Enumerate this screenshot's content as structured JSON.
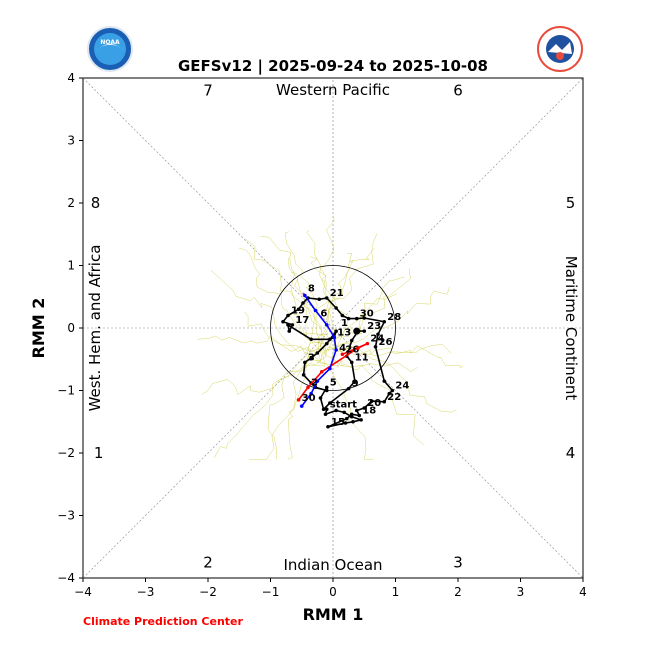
{
  "title": "GEFSv12 | 2025-09-24 to 2025-10-08",
  "footer": "Climate Prediction Center",
  "logos": {
    "left": {
      "name": "noaa-logo",
      "text": "NOAA"
    },
    "right": {
      "name": "nws-logo",
      "text": "NATIONAL WEATHER SERVICE"
    }
  },
  "colors": {
    "observed": "#000000",
    "spread": "#c8c832",
    "segment_red": "#ff0000",
    "segment_blue": "#0000ff",
    "segment_purple": "#cc33cc",
    "footer": "#ff0000"
  },
  "chart_data": {
    "type": "line",
    "title": "GEFSv12 | 2025-09-24 to 2025-10-08",
    "xlabel": "RMM 1",
    "ylabel": "RMM 2",
    "xlim": [
      -4,
      4
    ],
    "ylim": [
      -4,
      4
    ],
    "xticks": [
      "−4",
      "−3",
      "−2",
      "−1",
      "0",
      "1",
      "2",
      "3",
      "4"
    ],
    "yticks": [
      "−4",
      "−3",
      "−2",
      "−1",
      "0",
      "1",
      "2",
      "3",
      "4"
    ],
    "grid": "dashed diagonals and zero lines",
    "amplitude_circle_radius": 1,
    "phase_numbers": [
      {
        "text": "1",
        "x": -3.75,
        "y": -2.0
      },
      {
        "text": "2",
        "x": -2.0,
        "y": -3.75
      },
      {
        "text": "3",
        "x": 2.0,
        "y": -3.75
      },
      {
        "text": "4",
        "x": 3.8,
        "y": -2.0
      },
      {
        "text": "5",
        "x": 3.8,
        "y": 2.0
      },
      {
        "text": "6",
        "x": 2.0,
        "y": 3.8
      },
      {
        "text": "7",
        "x": -2.0,
        "y": 3.8
      },
      {
        "text": "8",
        "x": -3.8,
        "y": 2.0
      }
    ],
    "region_labels": {
      "top": "Western Pacific",
      "bottom": "Indian Ocean",
      "left": "West. Hem. and Africa",
      "right": "Maritime Continent"
    },
    "observed": {
      "name": "observed",
      "points": [
        {
          "label": "start",
          "x": -0.1,
          "y": -1.3
        },
        {
          "label": "",
          "x": -0.12,
          "y": -1.38
        },
        {
          "label": "",
          "x": 0.05,
          "y": -1.32
        },
        {
          "label": "",
          "x": 0.18,
          "y": -1.35
        },
        {
          "label": "",
          "x": 0.3,
          "y": -1.42
        },
        {
          "label": "",
          "x": 0.45,
          "y": -1.47
        },
        {
          "label": "",
          "x": 0.32,
          "y": -1.5
        },
        {
          "label": "",
          "x": 0.2,
          "y": -1.52
        },
        {
          "label": "15",
          "x": -0.08,
          "y": -1.58
        },
        {
          "label": "",
          "x": 0.22,
          "y": -1.45
        },
        {
          "label": "",
          "x": 0.3,
          "y": -1.38
        },
        {
          "label": "18",
          "x": 0.42,
          "y": -1.4
        },
        {
          "label": "",
          "x": 0.38,
          "y": -1.32
        },
        {
          "label": "20",
          "x": 0.5,
          "y": -1.28
        },
        {
          "label": "",
          "x": 0.62,
          "y": -1.17
        },
        {
          "label": "22",
          "x": 0.82,
          "y": -1.18
        },
        {
          "label": "",
          "x": 0.9,
          "y": -1.05
        },
        {
          "label": "24",
          "x": 0.95,
          "y": -1.0
        },
        {
          "label": "",
          "x": 0.82,
          "y": -0.85
        },
        {
          "label": "26",
          "x": 0.68,
          "y": -0.3
        },
        {
          "label": "",
          "x": 0.72,
          "y": -0.1
        },
        {
          "label": "28",
          "x": 0.82,
          "y": 0.1
        },
        {
          "label": "",
          "x": 0.5,
          "y": 0.16
        },
        {
          "label": "30",
          "x": 0.38,
          "y": 0.15
        },
        {
          "label": "",
          "x": 0.25,
          "y": 0.15
        },
        {
          "label": "",
          "x": 0.15,
          "y": 0.2
        },
        {
          "label": "",
          "x": 0.05,
          "y": 0.32
        },
        {
          "label": "21",
          "x": -0.1,
          "y": 0.48
        },
        {
          "label": "",
          "x": -0.22,
          "y": 0.46
        },
        {
          "label": "",
          "x": -0.4,
          "y": 0.48
        },
        {
          "label": "",
          "x": -0.48,
          "y": 0.4
        },
        {
          "label": "",
          "x": -0.55,
          "y": 0.3
        },
        {
          "label": "19",
          "x": -0.72,
          "y": 0.2
        },
        {
          "label": "",
          "x": -0.8,
          "y": 0.1
        },
        {
          "label": "17",
          "x": -0.65,
          "y": 0.05
        },
        {
          "label": "",
          "x": -0.7,
          "y": -0.05
        },
        {
          "label": "",
          "x": -0.72,
          "y": 0.05
        },
        {
          "label": "",
          "x": -0.35,
          "y": -0.18
        },
        {
          "label": "",
          "x": -0.05,
          "y": -0.18
        },
        {
          "label": "13",
          "x": 0.02,
          "y": -0.15
        },
        {
          "label": "",
          "x": 0.05,
          "y": -0.05
        },
        {
          "label": "",
          "x": -0.1,
          "y": -0.25
        },
        {
          "label": "",
          "x": -0.25,
          "y": -0.4
        },
        {
          "label": "",
          "x": -0.35,
          "y": -0.48
        },
        {
          "label": "3",
          "x": -0.45,
          "y": -0.55
        },
        {
          "label": "",
          "x": -0.47,
          "y": -0.75
        },
        {
          "label": "",
          "x": -0.35,
          "y": -0.88
        },
        {
          "label": "",
          "x": -0.28,
          "y": -0.95
        },
        {
          "label": "",
          "x": -0.1,
          "y": -1.0
        },
        {
          "label": "5",
          "x": -0.1,
          "y": -0.95
        },
        {
          "label": "",
          "x": -0.2,
          "y": -1.12
        },
        {
          "label": "",
          "x": -0.15,
          "y": -1.3
        },
        {
          "label": "",
          "x": -0.05,
          "y": -1.2
        },
        {
          "label": "9",
          "x": 0.25,
          "y": -0.97
        },
        {
          "label": "",
          "x": 0.35,
          "y": -0.85
        },
        {
          "label": "11",
          "x": 0.3,
          "y": -0.55
        },
        {
          "label": "",
          "x": 0.22,
          "y": -0.45
        },
        {
          "label": "",
          "x": 0.3,
          "y": -0.2
        },
        {
          "label": "",
          "x": 0.4,
          "y": -0.05
        },
        {
          "label": "23",
          "x": 0.5,
          "y": -0.05
        }
      ]
    },
    "forecast": {
      "red": {
        "name": "red segment",
        "points": [
          {
            "label": "26",
            "x": 0.15,
            "y": -0.42
          },
          {
            "label": "24",
            "x": 0.55,
            "y": -0.25
          },
          {
            "label": "",
            "x": 0.4,
            "y": -0.32
          },
          {
            "label": "",
            "x": -0.18,
            "y": -0.7
          },
          {
            "label": "",
            "x": -0.4,
            "y": -0.95
          },
          {
            "label": "",
            "x": -0.55,
            "y": -1.15
          }
        ]
      },
      "blue": {
        "name": "blue segment",
        "points": [
          {
            "label": "",
            "x": 0.02,
            "y": -0.15
          },
          {
            "label": "",
            "x": 0.05,
            "y": -0.35
          },
          {
            "label": "",
            "x": -0.05,
            "y": -0.65
          },
          {
            "label": "",
            "x": -0.25,
            "y": -0.85
          },
          {
            "label": "",
            "x": -0.35,
            "y": -1.05
          },
          {
            "label": "",
            "x": -0.5,
            "y": -1.25
          }
        ]
      },
      "blue_upper": {
        "name": "blue upper segment",
        "points": [
          {
            "label": "",
            "x": 0.02,
            "y": -0.15
          },
          {
            "label": "",
            "x": -0.1,
            "y": 0.05
          },
          {
            "label": "",
            "x": -0.28,
            "y": 0.28
          },
          {
            "label": "",
            "x": -0.45,
            "y": 0.52
          }
        ]
      },
      "purple": {
        "name": "purple segment",
        "points": [
          {
            "label": "",
            "x": -0.45,
            "y": 0.52
          },
          {
            "label": "",
            "x": -0.48,
            "y": 0.56
          }
        ]
      }
    },
    "annotations": [
      {
        "text": "8",
        "x": -0.45,
        "y": 0.55
      },
      {
        "text": "6",
        "x": -0.25,
        "y": 0.15
      },
      {
        "text": "1",
        "x": 0.08,
        "y": 0.0
      },
      {
        "text": "4",
        "x": 0.05,
        "y": -0.4
      },
      {
        "text": "2",
        "x": -0.4,
        "y": -0.95
      },
      {
        "text": "30",
        "x": -0.55,
        "y": -1.2
      }
    ]
  }
}
